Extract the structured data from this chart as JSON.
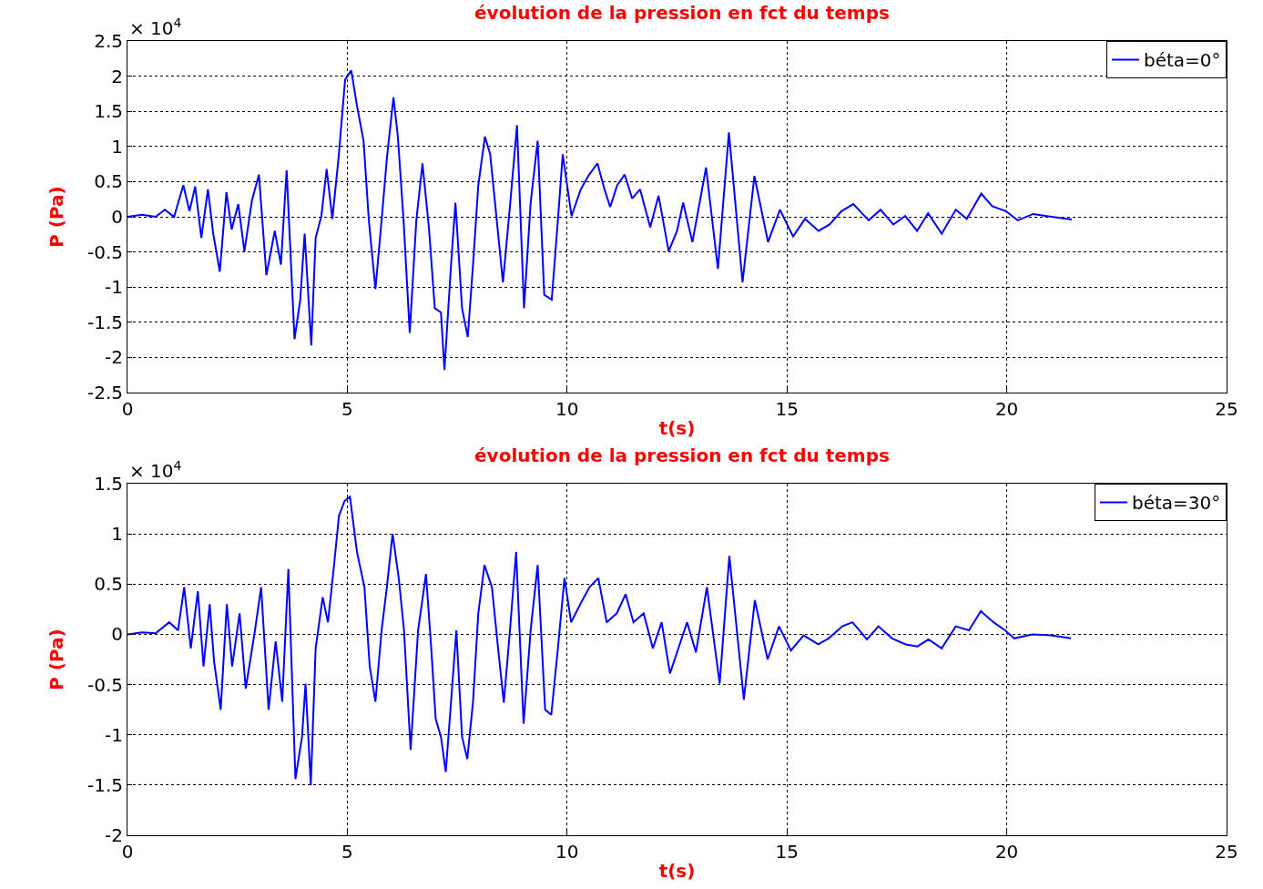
{
  "chart_data": [
    {
      "type": "line",
      "title": "évolution de la pression en fct du temps",
      "xlabel": "t(s)",
      "ylabel": "P (Pa)",
      "annotations": [
        "× 10$^{4}$"
      ],
      "xlim": [
        0,
        25
      ],
      "xticks": [
        0,
        5,
        10,
        15,
        20,
        25
      ],
      "ylim": [
        -2.5,
        2.5
      ],
      "yticks": [
        -2.5,
        -2,
        -1.5,
        -1,
        -0.5,
        0,
        0.5,
        1,
        1.5,
        2,
        2.5
      ],
      "grid": true,
      "legend": "top right",
      "line_style": "solid",
      "series": [
        {
          "name": "béta=0°",
          "color": "#0000ff",
          "x": [
            0,
            0.33,
            0.64,
            0.85,
            1.06,
            1.27,
            1.41,
            1.54,
            1.68,
            1.83,
            1.95,
            2.1,
            2.25,
            2.37,
            2.52,
            2.66,
            2.83,
            2.99,
            3.16,
            3.35,
            3.49,
            3.62,
            3.8,
            3.93,
            4.03,
            4.18,
            4.28,
            4.41,
            4.53,
            4.66,
            4.8,
            4.95,
            5.09,
            5.22,
            5.37,
            5.49,
            5.64,
            5.78,
            5.9,
            6.05,
            6.15,
            6.28,
            6.42,
            6.57,
            6.71,
            6.86,
            6.99,
            7.13,
            7.21,
            7.36,
            7.46,
            7.61,
            7.74,
            7.86,
            7.98,
            8.13,
            8.25,
            8.4,
            8.54,
            8.69,
            8.86,
            9.02,
            9.17,
            9.33,
            9.48,
            9.65,
            9.79,
            9.9,
            10.1,
            10.31,
            10.48,
            10.69,
            10.85,
            10.98,
            11.14,
            11.31,
            11.48,
            11.66,
            11.89,
            12.08,
            12.31,
            12.5,
            12.64,
            12.85,
            13.16,
            13.43,
            13.68,
            13.99,
            14.26,
            14.57,
            14.84,
            15.14,
            15.41,
            15.72,
            15.97,
            16.24,
            16.51,
            16.86,
            17.13,
            17.42,
            17.69,
            17.96,
            18.21,
            18.52,
            18.84,
            19.09,
            19.42,
            19.67,
            19.98,
            20.25,
            20.6,
            21.02,
            21.48
          ],
          "values": [
            0,
            0.03,
            0,
            0.1,
            0,
            0.45,
            0.08,
            0.43,
            -0.3,
            0.39,
            -0.24,
            -0.78,
            0.35,
            -0.18,
            0.18,
            -0.49,
            0.23,
            0.6,
            -0.83,
            -0.2,
            -0.68,
            0.66,
            -1.74,
            -1.18,
            -0.24,
            -1.83,
            -0.3,
            0.01,
            0.68,
            -0.03,
            0.83,
            1.95,
            2.08,
            1.58,
            1.08,
            -0.05,
            -1.03,
            -0.05,
            0.83,
            1.7,
            1.14,
            -0.05,
            -1.65,
            -0.05,
            0.76,
            -0.18,
            -1.3,
            -1.36,
            -2.18,
            -0.68,
            0.2,
            -1.3,
            -1.71,
            -0.68,
            0.45,
            1.14,
            0.89,
            -0.05,
            -0.93,
            0.08,
            1.3,
            -1.3,
            0.2,
            1.08,
            -1.11,
            -1.18,
            -0.05,
            0.89,
            0.01,
            0.39,
            0.58,
            0.76,
            0.39,
            0.14,
            0.45,
            0.6,
            0.26,
            0.39,
            -0.15,
            0.3,
            -0.49,
            -0.2,
            0.2,
            -0.36,
            0.7,
            -0.74,
            1.2,
            -0.93,
            0.58,
            -0.36,
            0.1,
            -0.28,
            -0.03,
            -0.2,
            -0.11,
            0.08,
            0.18,
            -0.05,
            0.1,
            -0.11,
            0.01,
            -0.2,
            0.05,
            -0.24,
            0.1,
            -0.03,
            0.33,
            0.15,
            0.08,
            -0.05,
            0.04,
            0,
            -0.04
          ]
        }
      ]
    },
    {
      "type": "line",
      "title": "évolution de la pression en fct du temps",
      "xlabel": "t(s)",
      "ylabel": "P (Pa)",
      "annotations": [
        "× 10$^{4}$"
      ],
      "xlim": [
        0,
        25
      ],
      "xticks": [
        0,
        5,
        10,
        15,
        20,
        25
      ],
      "ylim": [
        -2,
        1.5
      ],
      "yticks": [
        -2,
        -1.5,
        -1,
        -0.5,
        0,
        0.5,
        1,
        1.5
      ],
      "grid": true,
      "legend": "top right",
      "line_style": "solid",
      "series": [
        {
          "name": "béta=30°",
          "color": "#0000ff",
          "x": [
            0,
            0.33,
            0.64,
            0.95,
            1.15,
            1.29,
            1.44,
            1.6,
            1.73,
            1.87,
            1.97,
            2.12,
            2.26,
            2.38,
            2.55,
            2.69,
            2.9,
            3.04,
            3.21,
            3.37,
            3.52,
            3.66,
            3.82,
            3.97,
            4.05,
            4.17,
            4.28,
            4.44,
            4.56,
            4.69,
            4.81,
            4.94,
            5.06,
            5.22,
            5.39,
            5.51,
            5.64,
            5.78,
            5.9,
            6.03,
            6.17,
            6.29,
            6.44,
            6.61,
            6.79,
            6.91,
            7.01,
            7.13,
            7.24,
            7.36,
            7.48,
            7.61,
            7.73,
            7.86,
            7.98,
            8.12,
            8.29,
            8.43,
            8.56,
            8.7,
            8.84,
            9.01,
            9.17,
            9.33,
            9.5,
            9.64,
            9.79,
            9.94,
            10.09,
            10.3,
            10.51,
            10.71,
            10.9,
            11.13,
            11.33,
            11.51,
            11.74,
            11.95,
            12.15,
            12.34,
            12.56,
            12.73,
            12.93,
            13.18,
            13.47,
            13.69,
            14.02,
            14.27,
            14.56,
            14.82,
            15.09,
            15.38,
            15.71,
            15.95,
            16.26,
            16.49,
            16.82,
            17.08,
            17.39,
            17.7,
            17.97,
            18.22,
            18.52,
            18.84,
            19.14,
            19.41,
            19.7,
            19.96,
            20.17,
            20.58,
            21,
            21.46
          ],
          "values": [
            0,
            0.02,
            0.01,
            0.12,
            0.04,
            0.47,
            -0.14,
            0.43,
            -0.32,
            0.3,
            -0.27,
            -0.75,
            0.3,
            -0.32,
            0.21,
            -0.54,
            0.04,
            0.47,
            -0.75,
            -0.07,
            -0.67,
            0.65,
            -1.44,
            -1.02,
            -0.49,
            -1.5,
            -0.14,
            0.37,
            0.12,
            0.65,
            1.18,
            1.33,
            1.37,
            0.82,
            0.47,
            -0.32,
            -0.67,
            0.04,
            0.47,
            1,
            0.56,
            0.04,
            -1.15,
            0.04,
            0.6,
            -0.14,
            -0.84,
            -1.02,
            -1.37,
            -0.67,
            0.04,
            -1.02,
            -1.24,
            -0.67,
            0.21,
            0.69,
            0.47,
            -0.14,
            -0.68,
            0.04,
            0.82,
            -0.89,
            0.04,
            0.69,
            -0.75,
            -0.8,
            -0.14,
            0.56,
            0.12,
            0.3,
            0.47,
            0.56,
            0.12,
            0.21,
            0.4,
            0.12,
            0.21,
            -0.14,
            0.12,
            -0.39,
            -0.1,
            0.12,
            -0.18,
            0.47,
            -0.49,
            0.78,
            -0.65,
            0.34,
            -0.25,
            0.08,
            -0.16,
            -0.01,
            -0.1,
            -0.04,
            0.08,
            0.12,
            -0.05,
            0.08,
            -0.04,
            -0.1,
            -0.12,
            -0.05,
            -0.14,
            0.08,
            0.04,
            0.23,
            0.12,
            0.04,
            -0.04,
            0,
            -0.01,
            -0.04
          ]
        }
      ]
    }
  ]
}
